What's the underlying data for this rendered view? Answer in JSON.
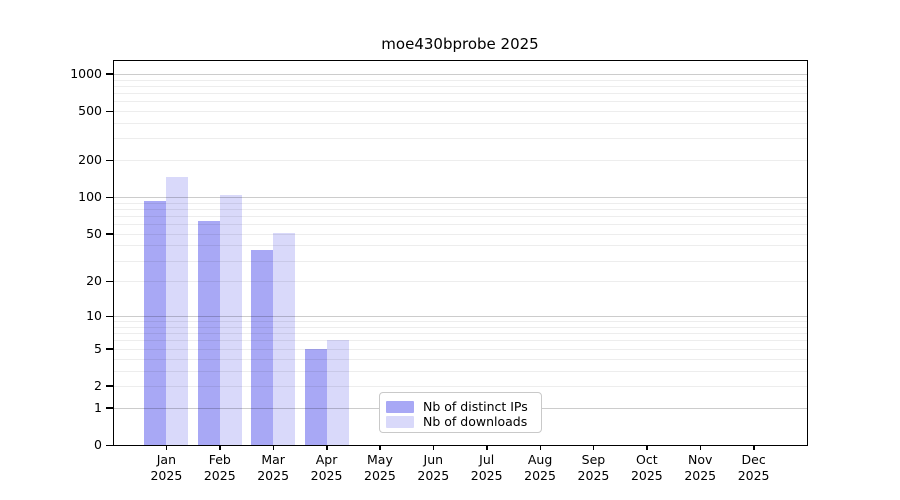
{
  "title": "moe430bprobe 2025",
  "chart_data": {
    "type": "bar",
    "title": "moe430bprobe 2025",
    "categories": [
      "Jan 2025",
      "Feb 2025",
      "Mar 2025",
      "Apr 2025",
      "May 2025",
      "Jun 2025",
      "Jul 2025",
      "Aug 2025",
      "Sep 2025",
      "Oct 2025",
      "Nov 2025",
      "Dec 2025"
    ],
    "series": [
      {
        "name": "Nb of distinct IPs",
        "color": "#a8a8f5",
        "values": [
          93,
          64,
          37,
          5,
          0,
          0,
          0,
          0,
          0,
          0,
          0,
          0
        ]
      },
      {
        "name": "Nb of downloads",
        "color": "#d9d9fa",
        "values": [
          147,
          104,
          51,
          6,
          0,
          0,
          0,
          0,
          0,
          0,
          0,
          0
        ]
      }
    ],
    "xlabel": "",
    "ylabel": "",
    "y_scale": "log10(value+1)",
    "y_ticks": [
      0,
      1,
      2,
      5,
      10,
      20,
      50,
      100,
      200,
      500,
      1000
    ],
    "y_major_gridlines": [
      1,
      10,
      100,
      1000
    ],
    "y_minor_gridlines": [
      2,
      3,
      4,
      5,
      6,
      7,
      8,
      9,
      20,
      30,
      40,
      50,
      60,
      70,
      80,
      90,
      200,
      300,
      400,
      500,
      600,
      700,
      800,
      900
    ],
    "ylim": [
      0,
      1100
    ],
    "grid": true,
    "legend_position": "bottom-center-left inside plot"
  },
  "colors": {
    "background": "#ffffff",
    "axis": "#000000",
    "bar_distinct_ips": "#a8a8f5",
    "bar_downloads": "#d9d9fa",
    "gridline_major": "#cccccc",
    "gridline_minor": "#ededed",
    "legend_border": "#c9c9c9"
  }
}
